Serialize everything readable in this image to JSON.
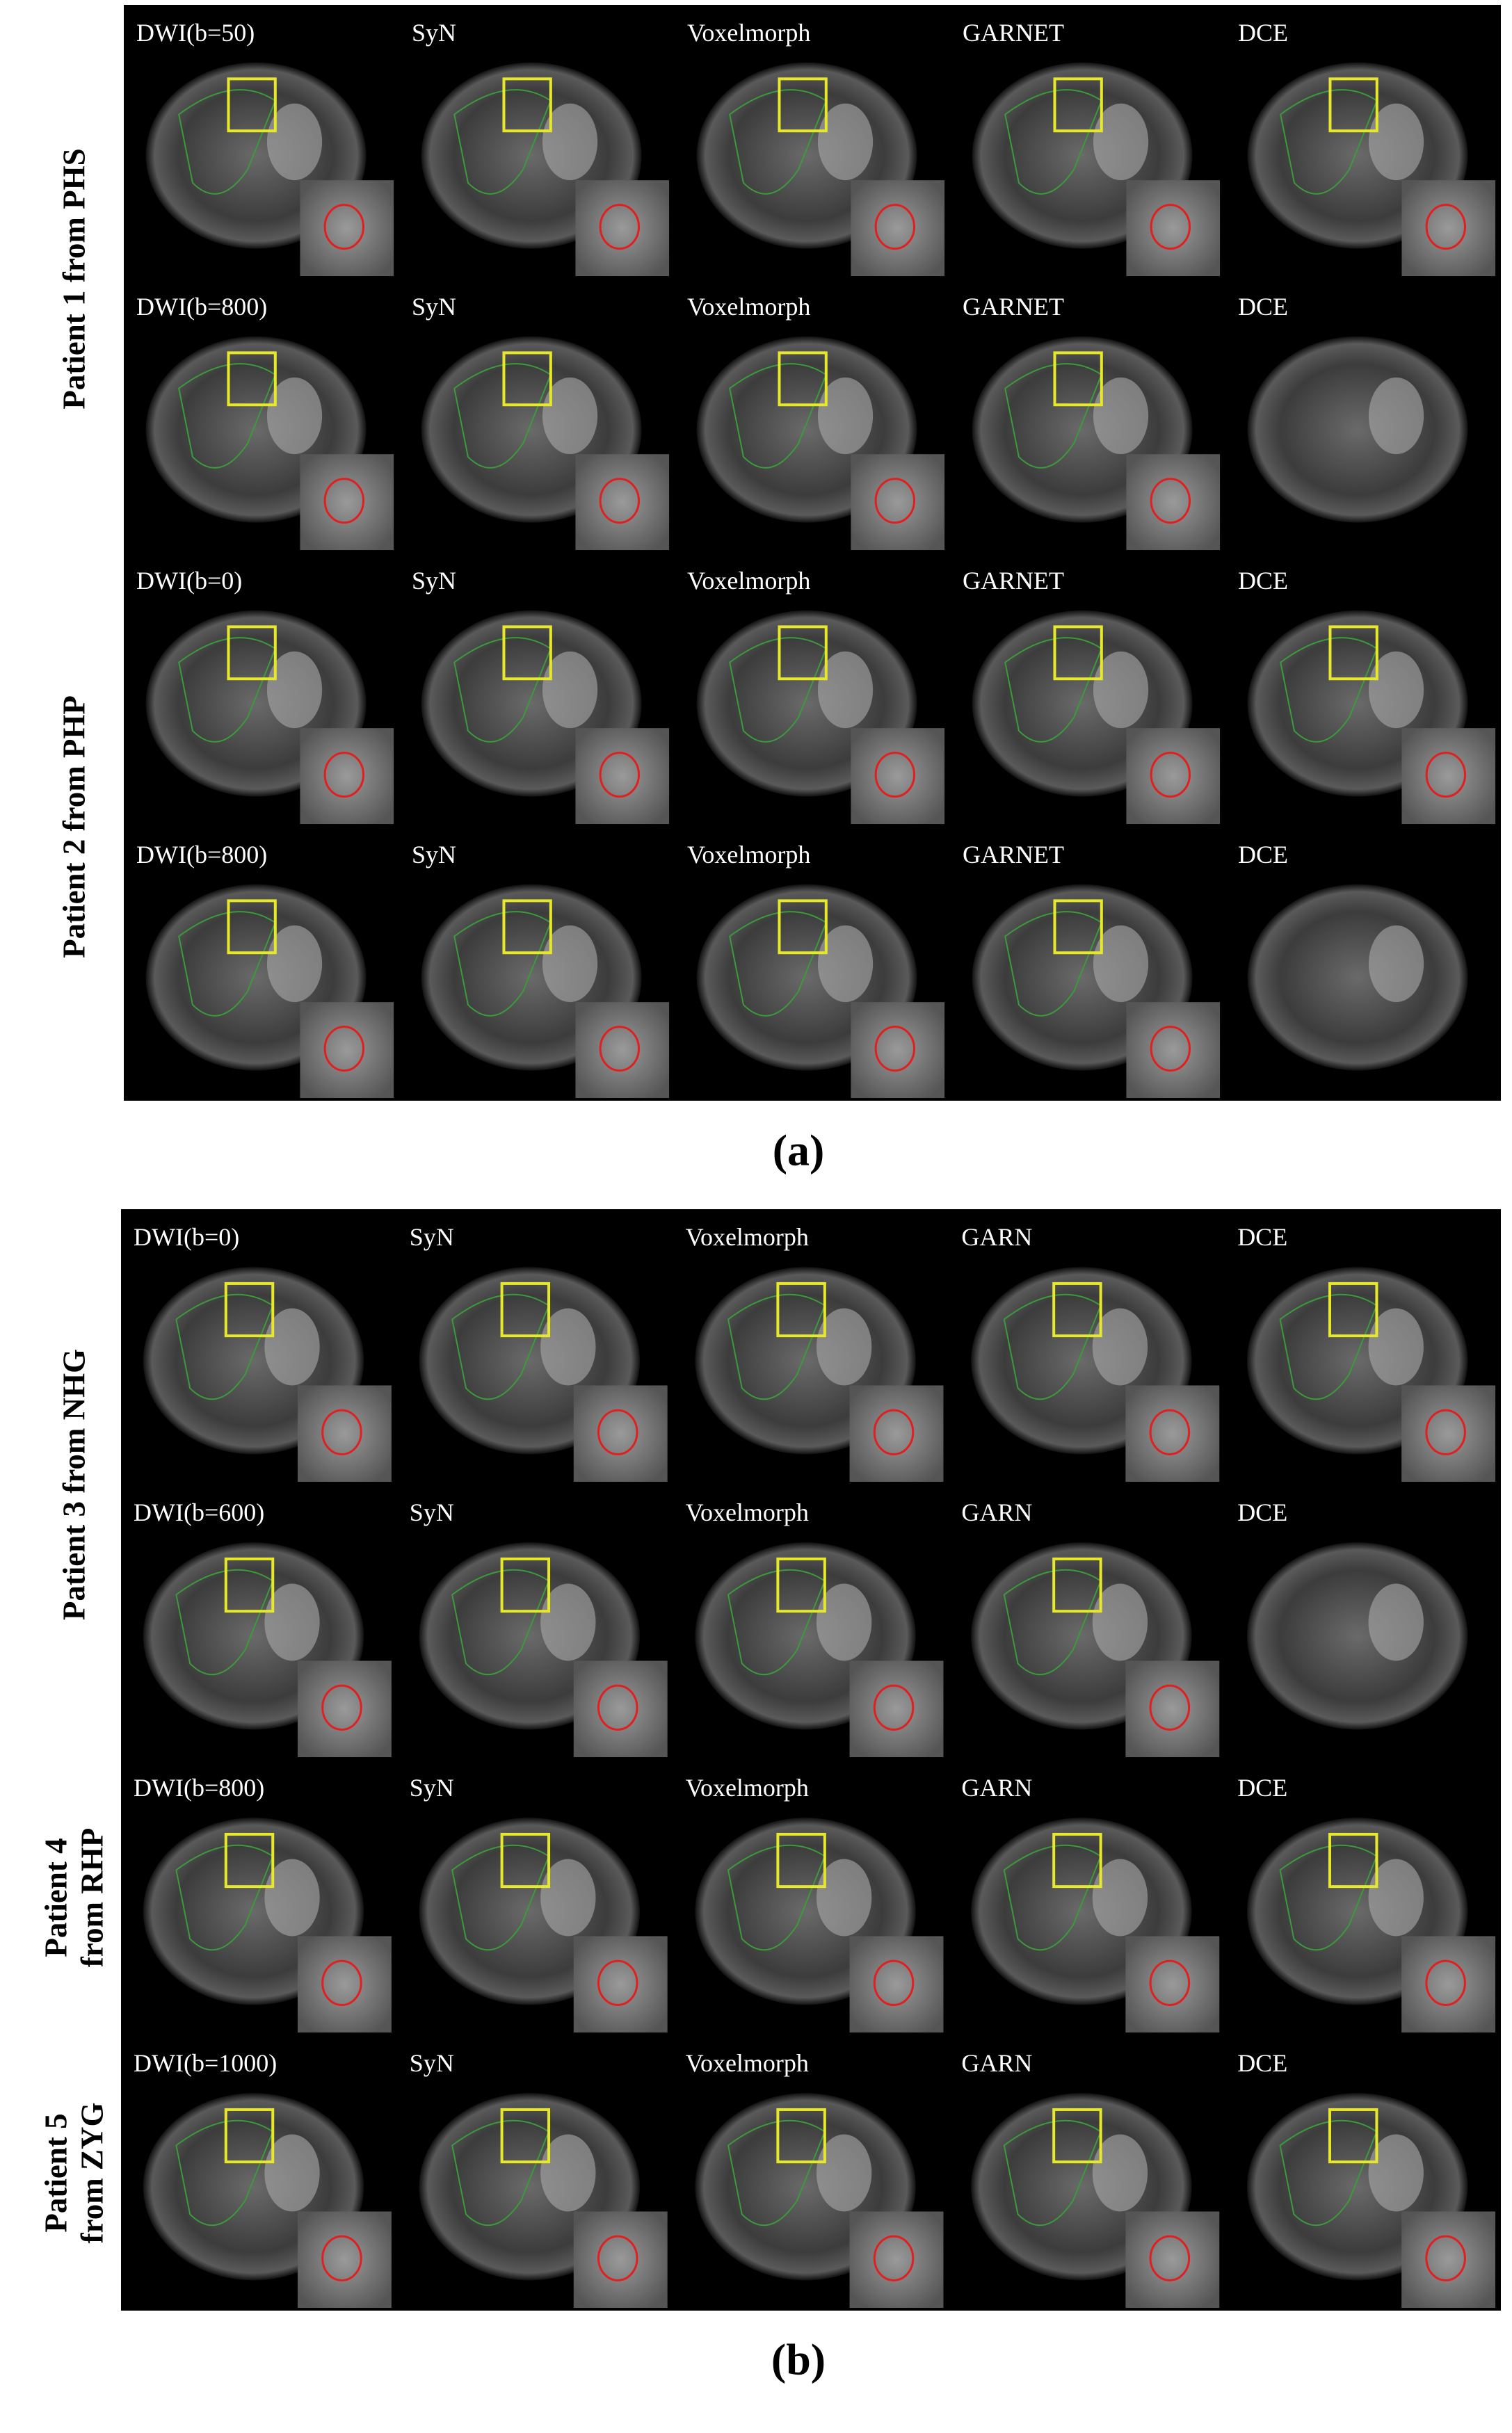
{
  "panels": [
    {
      "label": "(a)",
      "patients": [
        {
          "label": [
            "Patient 1 from PHS"
          ],
          "rows": [
            [
              "DWI(b=50)",
              "SyN",
              "Voxelmorph",
              "GARNET",
              "DCE"
            ],
            [
              "DWI(b=800)",
              "SyN",
              "Voxelmorph",
              "GARNET",
              "DCE"
            ]
          ]
        },
        {
          "label": [
            "Patient 2 from PHP"
          ],
          "rows": [
            [
              "DWI(b=0)",
              "SyN",
              "Voxelmorph",
              "GARNET",
              "DCE"
            ],
            [
              "DWI(b=800)",
              "SyN",
              "Voxelmorph",
              "GARNET",
              "DCE"
            ]
          ]
        }
      ]
    },
    {
      "label": "(b)",
      "patients": [
        {
          "label": [
            "Patient 3 from NHG"
          ],
          "rows": [
            [
              "DWI(b=0)",
              "SyN",
              "Voxelmorph",
              "GARN",
              "DCE"
            ],
            [
              "DWI(b=600)",
              "SyN",
              "Voxelmorph",
              "GARN",
              "DCE"
            ]
          ]
        },
        {
          "label": [
            "Patient 4",
            "from RHP"
          ],
          "rows": [
            [
              "DWI(b=800)",
              "SyN",
              "Voxelmorph",
              "GARN",
              "DCE"
            ]
          ]
        },
        {
          "label": [
            "Patient 5",
            "from ZYG"
          ],
          "rows": [
            [
              "DWI(b=1000)",
              "SyN",
              "Voxelmorph",
              "GARN",
              "DCE"
            ]
          ]
        }
      ]
    }
  ]
}
